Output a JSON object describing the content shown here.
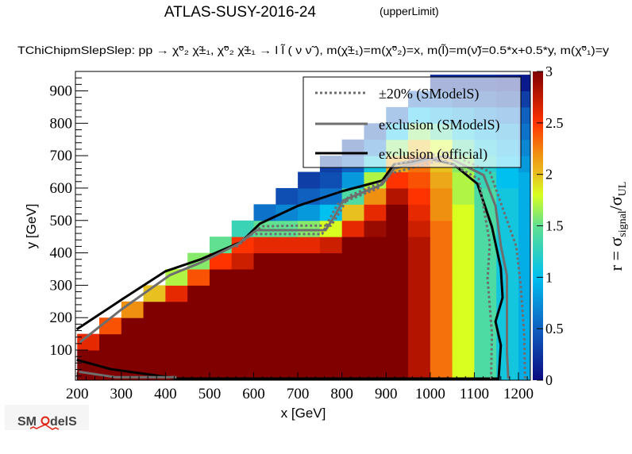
{
  "chart_data": {
    "type": "heatmap",
    "title": "ATLAS-SUSY-2016-24",
    "title_suffix": "(upperLimit)",
    "subtitle": "TChiChipmSlepSlep: pp  → χ̃⁰₂ χ̃±₁, χ̃⁰₂ χ̃±₁  → l l̃ ( ν ν̃ ), m(χ̃±₁)=m(χ̃⁰₂)=x, m(l̃)=m(ν̃)=0.5*x+0.5*y, m(χ̃⁰₁)=y",
    "xlabel": "x [GeV]",
    "ylabel": "y [GeV]",
    "zlabel_main": "r = σ",
    "zlabel_sub1": "signal",
    "zlabel_slash": "/σ",
    "zlabel_sub2": "UL",
    "xlim": [
      196,
      1227
    ],
    "ylim": [
      7,
      960
    ],
    "zlim": [
      0,
      3
    ],
    "xticks": [
      "200",
      "300",
      "400",
      "500",
      "600",
      "700",
      "800",
      "900",
      "1000",
      "1100",
      "1200"
    ],
    "yticks": [
      "100",
      "200",
      "300",
      "400",
      "500",
      "600",
      "700",
      "800",
      "900"
    ],
    "zticks": [
      "0",
      "0.5",
      "1",
      "1.5",
      "2",
      "2.5",
      "3"
    ],
    "bin_width_x": 50,
    "bin_width_y": 50,
    "x_bin_starts": [
      200,
      250,
      300,
      350,
      400,
      450,
      500,
      550,
      600,
      650,
      700,
      750,
      800,
      850,
      900,
      950,
      1000,
      1050,
      1100,
      1150,
      1200
    ],
    "y_bin_start": 0,
    "z_by_x_column_from_bottom": [
      [
        3,
        3,
        2.6
      ],
      [
        3,
        3,
        3,
        2.4
      ],
      [
        3,
        3,
        3,
        3,
        2.2
      ],
      [
        3,
        3,
        3,
        3,
        3,
        2.0
      ],
      [
        3,
        3,
        3,
        3,
        3,
        2.6,
        1.7
      ],
      [
        3,
        3,
        3,
        3,
        3,
        3,
        2.4,
        1.6
      ],
      [
        3,
        3,
        3,
        3,
        3,
        3,
        3,
        2.5,
        1.5
      ],
      [
        3,
        3,
        3,
        3,
        3,
        3,
        3,
        2.7,
        2.5,
        1.3
      ],
      [
        3,
        3,
        3,
        3,
        3,
        3,
        3,
        3,
        2.6,
        1.5,
        0.6
      ],
      [
        3,
        3,
        3,
        3,
        3,
        3,
        3,
        3,
        2.6,
        1.5,
        0.7,
        0.4
      ],
      [
        3,
        3,
        3,
        3,
        3,
        3,
        3,
        3,
        2.6,
        1.6,
        0.8,
        0.5,
        0.3
      ],
      [
        3,
        3,
        3,
        3,
        3,
        3,
        3,
        3,
        2.7,
        1.8,
        1.0,
        0.6,
        0.4,
        0.3
      ],
      [
        3,
        3,
        3,
        3,
        3,
        3,
        3,
        3,
        3,
        2.6,
        2.0,
        1.4,
        0.8,
        0.5,
        0.3
      ],
      [
        3,
        3,
        3,
        3,
        3,
        3,
        3,
        3,
        3,
        2.9,
        2.6,
        2.2,
        1.7,
        1.1,
        0.6,
        0.4
      ],
      [
        3,
        3,
        3,
        3,
        3,
        3,
        3,
        3,
        3,
        3,
        3,
        2.8,
        2.5,
        2.1,
        1.6,
        1.0,
        0.5
      ],
      [
        2.8,
        2.8,
        2.8,
        2.8,
        2.8,
        2.8,
        2.8,
        2.8,
        2.8,
        2.7,
        2.6,
        2.5,
        2.4,
        2.3,
        2.0,
        1.6,
        1.0,
        0.5
      ],
      [
        2.3,
        2.3,
        2.3,
        2.3,
        2.3,
        2.3,
        2.3,
        2.3,
        2.3,
        2.3,
        2.2,
        2.2,
        2.1,
        2.0,
        1.8,
        1.4,
        0.9,
        0.5,
        0.2
      ],
      [
        1.8,
        1.8,
        1.8,
        1.8,
        1.8,
        1.8,
        1.8,
        1.8,
        1.8,
        1.8,
        1.8,
        1.7,
        1.7,
        1.6,
        1.4,
        1.1,
        0.8,
        0.4,
        0.2
      ],
      [
        1.4,
        1.4,
        1.4,
        1.4,
        1.4,
        1.4,
        1.4,
        1.4,
        1.4,
        1.4,
        1.4,
        1.4,
        1.3,
        1.2,
        1.1,
        0.9,
        0.7,
        0.4,
        0.2
      ],
      [
        1.1,
        1.1,
        1.1,
        1.1,
        1.1,
        1.1,
        1.1,
        1.1,
        1.1,
        1.1,
        1.1,
        1.1,
        1.0,
        1.0,
        0.9,
        0.8,
        0.6,
        0.3,
        0.15
      ],
      [
        0.9,
        0.9,
        0.9,
        0.9,
        0.9,
        0.9,
        0.9,
        0.9,
        0.9,
        0.9,
        0.9,
        0.9,
        0.9,
        0.8,
        0.7,
        0.6,
        0.5,
        0.3,
        0.1
      ]
    ],
    "contours": [
      {
        "name": "exclusion (official)",
        "color": "#000000",
        "style": "solid",
        "x": [
          199,
          300,
          400,
          480,
          572,
          614,
          700,
          800,
          891,
          918,
          1000,
          1053,
          1107,
          1140,
          1160,
          1164,
          1148,
          1160,
          1155,
          800,
          425,
          414,
          276,
          199
        ],
        "y": [
          164,
          255,
          343,
          380,
          434,
          490,
          545,
          590,
          623,
          673,
          690,
          673,
          613,
          480,
          353,
          262,
          188,
          115,
          12,
          12,
          12,
          15,
          41,
          70
        ]
      },
      {
        "name": "exclusion (SModelS)",
        "color": "#6e6e6e",
        "style": "solid",
        "x": [
          206,
          300,
          410,
          480,
          565,
          606,
          700,
          763,
          783,
          803,
          891,
          918,
          1033,
          1121,
          1148,
          1160,
          1174,
          1174,
          1177
        ],
        "y": [
          124,
          225,
          331,
          370,
          428,
          470,
          470,
          470,
          513,
          562,
          611,
          660,
          700,
          640,
          545,
          422,
          330,
          95,
          12
        ]
      },
      {
        "name": "exclusion (SModelS) low branch",
        "color": "#6e6e6e",
        "style": "solid",
        "x": [
          204,
          288,
          425
        ],
        "y": [
          33,
          16,
          16
        ]
      },
      {
        "name": "±20% (SModelS) lower",
        "color": "#6e6e6e",
        "style": "dotted",
        "x": [
          560,
          596,
          700,
          755,
          772,
          790,
          880,
          910,
          1030,
          1110,
          1135,
          1130,
          1140,
          1138
        ],
        "y": [
          418,
          458,
          458,
          458,
          505,
          550,
          598,
          645,
          688,
          628,
          430,
          320,
          150,
          12
        ]
      },
      {
        "name": "±20% (SModelS) upper",
        "color": "#6e6e6e",
        "style": "dotted",
        "x": [
          575,
          620,
          700,
          775,
          795,
          815,
          900,
          925,
          1035,
          1135,
          1195,
          1205,
          1213,
          1215
        ],
        "y": [
          440,
          482,
          484,
          484,
          525,
          575,
          624,
          675,
          712,
          650,
          420,
          300,
          150,
          12
        ]
      }
    ],
    "colorscale": [
      "#0a0a80",
      "#1060c0",
      "#00c0f0",
      "#60e090",
      "#d8ff20",
      "#e8c020",
      "#f09010",
      "#ff3300",
      "#800000"
    ],
    "colorscale_values": [
      0,
      0.5,
      1.0,
      1.5,
      1.8,
      2.0,
      2.2,
      2.5,
      3.0
    ],
    "legend": {
      "placement": "top-right",
      "entries": [
        {
          "label": "±20% (SModelS)",
          "style": "dotted",
          "color": "#6e6e6e"
        },
        {
          "label": "exclusion (SModelS)",
          "style": "solid",
          "color": "#6e6e6e"
        },
        {
          "label": "exclusion (official)",
          "style": "solid",
          "color": "#000000"
        }
      ]
    },
    "logo": "SModelS"
  }
}
